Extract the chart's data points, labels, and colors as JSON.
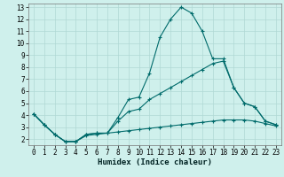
{
  "xlabel": "Humidex (Indice chaleur)",
  "bg_color": "#cff0ec",
  "grid_color": "#b0d8d4",
  "line_color": "#006b6b",
  "xlim": [
    -0.5,
    23.5
  ],
  "ylim": [
    1.5,
    13.3
  ],
  "xticks": [
    0,
    1,
    2,
    3,
    4,
    5,
    6,
    7,
    8,
    9,
    10,
    11,
    12,
    13,
    14,
    15,
    16,
    17,
    18,
    19,
    20,
    21,
    22,
    23
  ],
  "yticks": [
    2,
    3,
    4,
    5,
    6,
    7,
    8,
    9,
    10,
    11,
    12,
    13
  ],
  "line1_x": [
    0,
    1,
    2,
    3,
    4,
    5,
    6,
    7,
    8,
    9,
    10,
    11,
    12,
    13,
    14,
    15,
    16,
    17,
    18,
    19,
    20,
    21,
    22,
    23
  ],
  "line1_y": [
    4.1,
    3.2,
    2.4,
    1.8,
    1.8,
    2.4,
    2.5,
    2.5,
    3.8,
    5.3,
    5.5,
    7.5,
    10.5,
    12.0,
    13.0,
    12.5,
    11.0,
    8.7,
    8.7,
    6.3,
    5.0,
    4.7,
    3.5,
    3.2
  ],
  "line2_x": [
    0,
    1,
    2,
    3,
    4,
    5,
    6,
    7,
    8,
    9,
    10,
    11,
    12,
    13,
    14,
    15,
    16,
    17,
    18,
    19,
    20,
    21,
    22,
    23
  ],
  "line2_y": [
    4.1,
    3.2,
    2.4,
    1.8,
    1.8,
    2.4,
    2.5,
    2.5,
    3.5,
    4.3,
    4.5,
    5.3,
    5.8,
    6.3,
    6.8,
    7.3,
    7.8,
    8.3,
    8.5,
    6.3,
    5.0,
    4.7,
    3.5,
    3.2
  ],
  "line3_x": [
    0,
    1,
    2,
    3,
    4,
    5,
    6,
    7,
    8,
    9,
    10,
    11,
    12,
    13,
    14,
    15,
    16,
    17,
    18,
    19,
    20,
    21,
    22,
    23
  ],
  "line3_y": [
    4.1,
    3.2,
    2.4,
    1.8,
    1.8,
    2.3,
    2.4,
    2.5,
    2.6,
    2.7,
    2.8,
    2.9,
    3.0,
    3.1,
    3.2,
    3.3,
    3.4,
    3.5,
    3.6,
    3.6,
    3.6,
    3.5,
    3.3,
    3.1
  ]
}
